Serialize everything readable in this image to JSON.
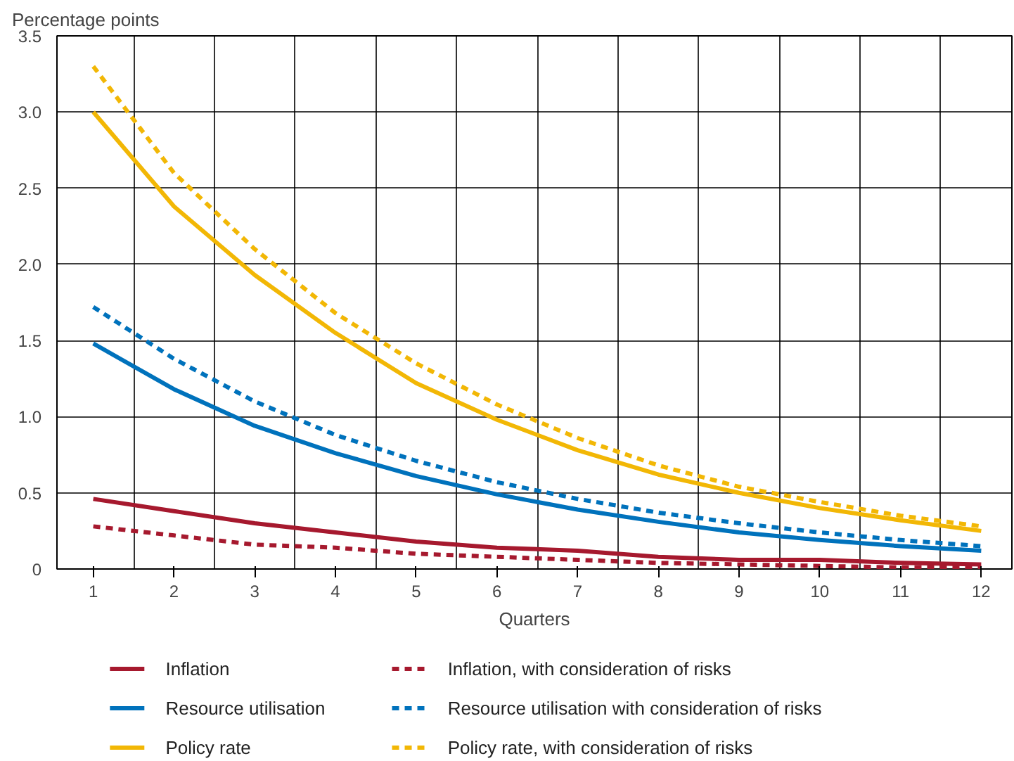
{
  "chart_data": {
    "type": "line",
    "ylabel": "Percentage points",
    "xlabel": "Quarters",
    "x": [
      1,
      2,
      3,
      4,
      5,
      6,
      7,
      8,
      9,
      10,
      11,
      12
    ],
    "xlim": [
      0.55,
      12.38
    ],
    "xticks": [
      1,
      2,
      3,
      4,
      5,
      6,
      7,
      8,
      9,
      10,
      11,
      12
    ],
    "ylim": [
      0,
      3.5
    ],
    "yticks": [
      0,
      0.5,
      {
        "value": 1,
        "label": "1.0"
      },
      1.5,
      {
        "value": 2,
        "label": "2.0"
      },
      2.5,
      {
        "value": 3,
        "label": "3.0"
      },
      3.5
    ],
    "grid": true,
    "legend": "bottom",
    "marker": "none",
    "series": [
      {
        "name": "Inflation",
        "color": "#a6192e",
        "line_style": "solid",
        "values": [
          0.46,
          0.38,
          0.3,
          0.24,
          0.18,
          0.14,
          0.12,
          0.08,
          0.06,
          0.06,
          0.04,
          0.03
        ]
      },
      {
        "name": "Inflation, with consideration of risks",
        "color": "#a6192e",
        "line_style": "dashed",
        "values": [
          0.28,
          0.22,
          0.16,
          0.14,
          0.1,
          0.08,
          0.06,
          0.04,
          0.03,
          0.02,
          0.01,
          0.01
        ]
      },
      {
        "name": "Resource utilisation",
        "color": "#0072bc",
        "line_style": "solid",
        "values": [
          1.48,
          1.18,
          0.94,
          0.76,
          0.61,
          0.49,
          0.39,
          0.31,
          0.24,
          0.19,
          0.15,
          0.12
        ]
      },
      {
        "name": "Resource utilisation with consideration of risks",
        "color": "#0072bc",
        "line_style": "dashed",
        "values": [
          1.72,
          1.38,
          1.1,
          0.88,
          0.71,
          0.57,
          0.46,
          0.37,
          0.3,
          0.24,
          0.19,
          0.15
        ]
      },
      {
        "name": "Policy rate",
        "color": "#f2b705",
        "line_style": "solid",
        "values": [
          3.0,
          2.38,
          1.93,
          1.55,
          1.22,
          0.98,
          0.78,
          0.62,
          0.5,
          0.4,
          0.32,
          0.25
        ]
      },
      {
        "name": "Policy rate, with consideration of risks",
        "color": "#f2b705",
        "line_style": "dashed",
        "values": [
          3.3,
          2.6,
          2.1,
          1.68,
          1.35,
          1.08,
          0.86,
          0.68,
          0.54,
          0.44,
          0.35,
          0.28
        ]
      }
    ]
  }
}
